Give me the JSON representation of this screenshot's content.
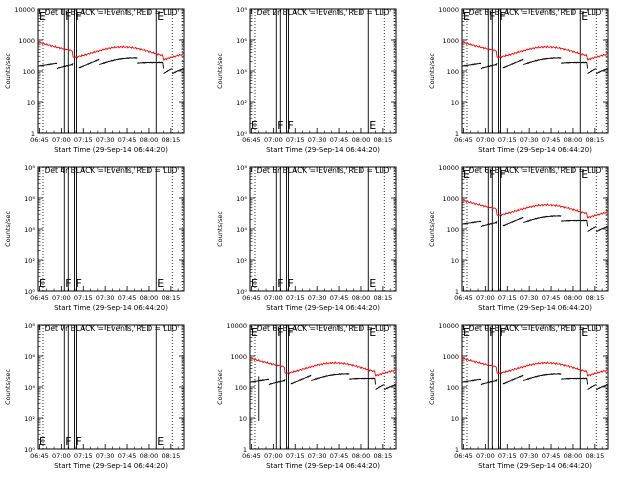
{
  "chart_data": [
    {
      "type": "line",
      "title": "Det 1r BLACK = Events, RED = LLD",
      "ylabel": "Counts/sec",
      "xlabel": "Start Time (29-Sep-14 06:44:20)",
      "x_ticks": [
        "06:45",
        "07:00",
        "07:15",
        "07:30",
        "07:45",
        "08:00",
        "08:15"
      ],
      "y_ticks": [
        "1",
        "10",
        "100",
        "1000",
        "10000"
      ],
      "y_scale": "log",
      "ylim": [
        1,
        10000
      ],
      "markers": [
        {
          "label": "E",
          "x": "06:44"
        },
        {
          "label": "F",
          "x": "07:02"
        },
        {
          "label": "F",
          "x": "07:09"
        },
        {
          "label": "E",
          "x": "08:05"
        }
      ],
      "has_data": true,
      "glitch": false
    },
    {
      "type": "line",
      "title": "Det 2r BLACK = Events, RED = LLD",
      "ylabel": "Counts/sec",
      "xlabel": "Start Time (29-Sep-14 06:44:20)",
      "x_ticks": [
        "06:45",
        "07:00",
        "07:15",
        "07:30",
        "07:45",
        "08:00",
        "08:15"
      ],
      "y_ticks": [
        "10⁰",
        "10²",
        "10⁴",
        "10⁶",
        "10⁸"
      ],
      "y_scale": "log",
      "ylim": [
        1,
        100000000
      ],
      "markers": [
        {
          "label": "E",
          "x": "06:44"
        },
        {
          "label": "F",
          "x": "07:02"
        },
        {
          "label": "F",
          "x": "07:09"
        },
        {
          "label": "E",
          "x": "08:05"
        }
      ],
      "has_data": false,
      "glitch": false
    },
    {
      "type": "line",
      "title": "Det 3r BLACK = Events, RED = LLD",
      "ylabel": "Counts/sec",
      "xlabel": "Start Time (29-Sep-14 06:44:20)",
      "x_ticks": [
        "06:45",
        "07:00",
        "07:15",
        "07:30",
        "07:45",
        "08:00",
        "08:15"
      ],
      "y_ticks": [
        "1",
        "10",
        "100",
        "1000",
        "10000"
      ],
      "y_scale": "log",
      "ylim": [
        1,
        10000
      ],
      "markers": [
        {
          "label": "E",
          "x": "06:44"
        },
        {
          "label": "F",
          "x": "07:02"
        },
        {
          "label": "F",
          "x": "07:09"
        },
        {
          "label": "E",
          "x": "08:05"
        }
      ],
      "has_data": true,
      "glitch": false
    },
    {
      "type": "line",
      "title": "Det 4r BLACK = Events, RED = LLD",
      "ylabel": "Counts/sec",
      "xlabel": "Start Time (29-Sep-14 06:44:20)",
      "x_ticks": [
        "06:45",
        "07:00",
        "07:15",
        "07:30",
        "07:45",
        "08:00",
        "08:15"
      ],
      "y_ticks": [
        "10⁰",
        "10²",
        "10⁴",
        "10⁶",
        "10⁸"
      ],
      "y_scale": "log",
      "ylim": [
        1,
        100000000
      ],
      "markers": [
        {
          "label": "E",
          "x": "06:44"
        },
        {
          "label": "F",
          "x": "07:02"
        },
        {
          "label": "F",
          "x": "07:09"
        },
        {
          "label": "E",
          "x": "08:05"
        }
      ],
      "has_data": false,
      "glitch": false
    },
    {
      "type": "line",
      "title": "Det 5r BLACK = Events, RED = LLD",
      "ylabel": "Counts/sec",
      "xlabel": "Start Time (29-Sep-14 06:44:20)",
      "x_ticks": [
        "06:45",
        "07:00",
        "07:15",
        "07:30",
        "07:45",
        "08:00",
        "08:15"
      ],
      "y_ticks": [
        "10⁰",
        "10²",
        "10⁴",
        "10⁶",
        "10⁸"
      ],
      "y_scale": "log",
      "ylim": [
        1,
        100000000
      ],
      "markers": [
        {
          "label": "E",
          "x": "06:44"
        },
        {
          "label": "F",
          "x": "07:02"
        },
        {
          "label": "F",
          "x": "07:09"
        },
        {
          "label": "E",
          "x": "08:05"
        }
      ],
      "has_data": false,
      "glitch": false
    },
    {
      "type": "line",
      "title": "Det 6r BLACK = Events, RED = LLD",
      "ylabel": "Counts/sec",
      "xlabel": "Start Time (29-Sep-14 06:44:20)",
      "x_ticks": [
        "06:45",
        "07:00",
        "07:15",
        "07:30",
        "07:45",
        "08:00",
        "08:15"
      ],
      "y_ticks": [
        "1",
        "10",
        "100",
        "1000",
        "10000"
      ],
      "y_scale": "log",
      "ylim": [
        1,
        10000
      ],
      "markers": [
        {
          "label": "E",
          "x": "06:44"
        },
        {
          "label": "F",
          "x": "07:02"
        },
        {
          "label": "F",
          "x": "07:09"
        },
        {
          "label": "E",
          "x": "08:05"
        }
      ],
      "has_data": true,
      "glitch": false
    },
    {
      "type": "line",
      "title": "Det 7r BLACK = Events, RED = LLD",
      "ylabel": "Counts/sec",
      "xlabel": "Start Time (29-Sep-14 06:44:20)",
      "x_ticks": [
        "06:45",
        "07:00",
        "07:15",
        "07:30",
        "07:45",
        "08:00",
        "08:15"
      ],
      "y_ticks": [
        "10⁰",
        "10²",
        "10⁴",
        "10⁶",
        "10⁸"
      ],
      "y_scale": "log",
      "ylim": [
        1,
        100000000
      ],
      "markers": [
        {
          "label": "E",
          "x": "06:44"
        },
        {
          "label": "F",
          "x": "07:02"
        },
        {
          "label": "F",
          "x": "07:09"
        },
        {
          "label": "E",
          "x": "08:05"
        }
      ],
      "has_data": false,
      "glitch": false
    },
    {
      "type": "line",
      "title": "Det 8r BLACK = Events, RED = LLD",
      "ylabel": "Counts/sec",
      "xlabel": "Start Time (29-Sep-14 06:44:20)",
      "x_ticks": [
        "06:45",
        "07:00",
        "07:15",
        "07:30",
        "07:45",
        "08:00",
        "08:15"
      ],
      "y_ticks": [
        "1",
        "10",
        "100",
        "1000",
        "10000"
      ],
      "y_scale": "log",
      "ylim": [
        1,
        10000
      ],
      "markers": [
        {
          "label": "E",
          "x": "06:44"
        },
        {
          "label": "F",
          "x": "07:02"
        },
        {
          "label": "F",
          "x": "07:09"
        },
        {
          "label": "E",
          "x": "08:05"
        }
      ],
      "has_data": true,
      "glitch": true
    },
    {
      "type": "line",
      "title": "Det 9r BLACK = Events, RED = LLD",
      "ylabel": "Counts/sec",
      "xlabel": "Start Time (29-Sep-14 06:44:20)",
      "x_ticks": [
        "06:45",
        "07:00",
        "07:15",
        "07:30",
        "07:45",
        "08:00",
        "08:15"
      ],
      "y_ticks": [
        "1",
        "10",
        "100",
        "1000",
        "10000"
      ],
      "y_scale": "log",
      "ylim": [
        1,
        10000
      ],
      "markers": [
        {
          "label": "E",
          "x": "06:44"
        },
        {
          "label": "F",
          "x": "07:02"
        },
        {
          "label": "F",
          "x": "07:09"
        },
        {
          "label": "E",
          "x": "08:05"
        }
      ],
      "has_data": true,
      "glitch": false
    }
  ],
  "series_colors": {
    "events": "#000000",
    "lld": "#ff0000"
  }
}
